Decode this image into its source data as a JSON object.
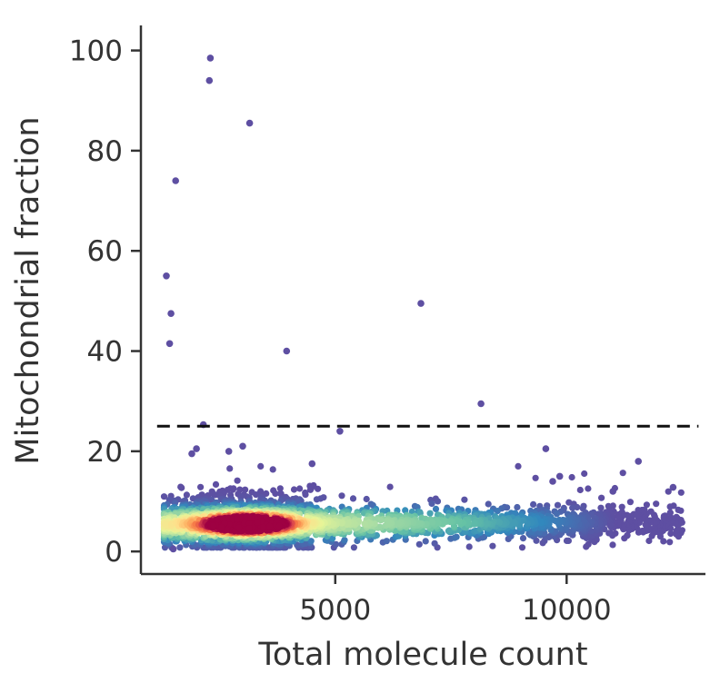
{
  "chart_data": {
    "type": "scatter",
    "title": "",
    "xlabel": "Total molecule count",
    "ylabel": "Mitochondrial fraction",
    "xlim": [
      800,
      13000
    ],
    "ylim": [
      -4.5,
      105
    ],
    "x_ticks": [
      5000,
      10000
    ],
    "y_ticks": [
      0,
      20,
      40,
      60,
      80,
      100
    ],
    "grid": false,
    "legend": "none",
    "colormap": "Spectral_r (point density)",
    "colors": {
      "low_density": "#5e4fa2",
      "mid_density": "#fdfab8",
      "high_density": "#b5173f",
      "threshold_line": "#111111",
      "axis": "#333333"
    },
    "threshold": {
      "y": 25,
      "style": "dashed"
    },
    "density_cloud": {
      "x_range": [
        1300,
        12500
      ],
      "y_typical_range": [
        1,
        12
      ],
      "peak": {
        "x": 3100,
        "y": 5.5
      },
      "n_points_approx": 2500
    },
    "outliers": [
      {
        "x": 2300,
        "y": 98.5
      },
      {
        "x": 2280,
        "y": 94
      },
      {
        "x": 3150,
        "y": 85.5
      },
      {
        "x": 1550,
        "y": 74
      },
      {
        "x": 1350,
        "y": 55
      },
      {
        "x": 1450,
        "y": 47.5
      },
      {
        "x": 1420,
        "y": 41.5
      },
      {
        "x": 3950,
        "y": 40
      },
      {
        "x": 6850,
        "y": 49.5
      },
      {
        "x": 8150,
        "y": 29.5
      },
      {
        "x": 2150,
        "y": 25.3
      },
      {
        "x": 5100,
        "y": 24
      },
      {
        "x": 9550,
        "y": 20.5
      },
      {
        "x": 11550,
        "y": 18
      },
      {
        "x": 2700,
        "y": 20
      },
      {
        "x": 3000,
        "y": 21
      },
      {
        "x": 1900,
        "y": 19.5
      },
      {
        "x": 9700,
        "y": 14
      },
      {
        "x": 9850,
        "y": 15
      },
      {
        "x": 12300,
        "y": 12.8
      },
      {
        "x": 11000,
        "y": 12
      },
      {
        "x": 1500,
        "y": 0.5
      },
      {
        "x": 2000,
        "y": 20.5
      },
      {
        "x": 4500,
        "y": 17.5
      }
    ]
  }
}
